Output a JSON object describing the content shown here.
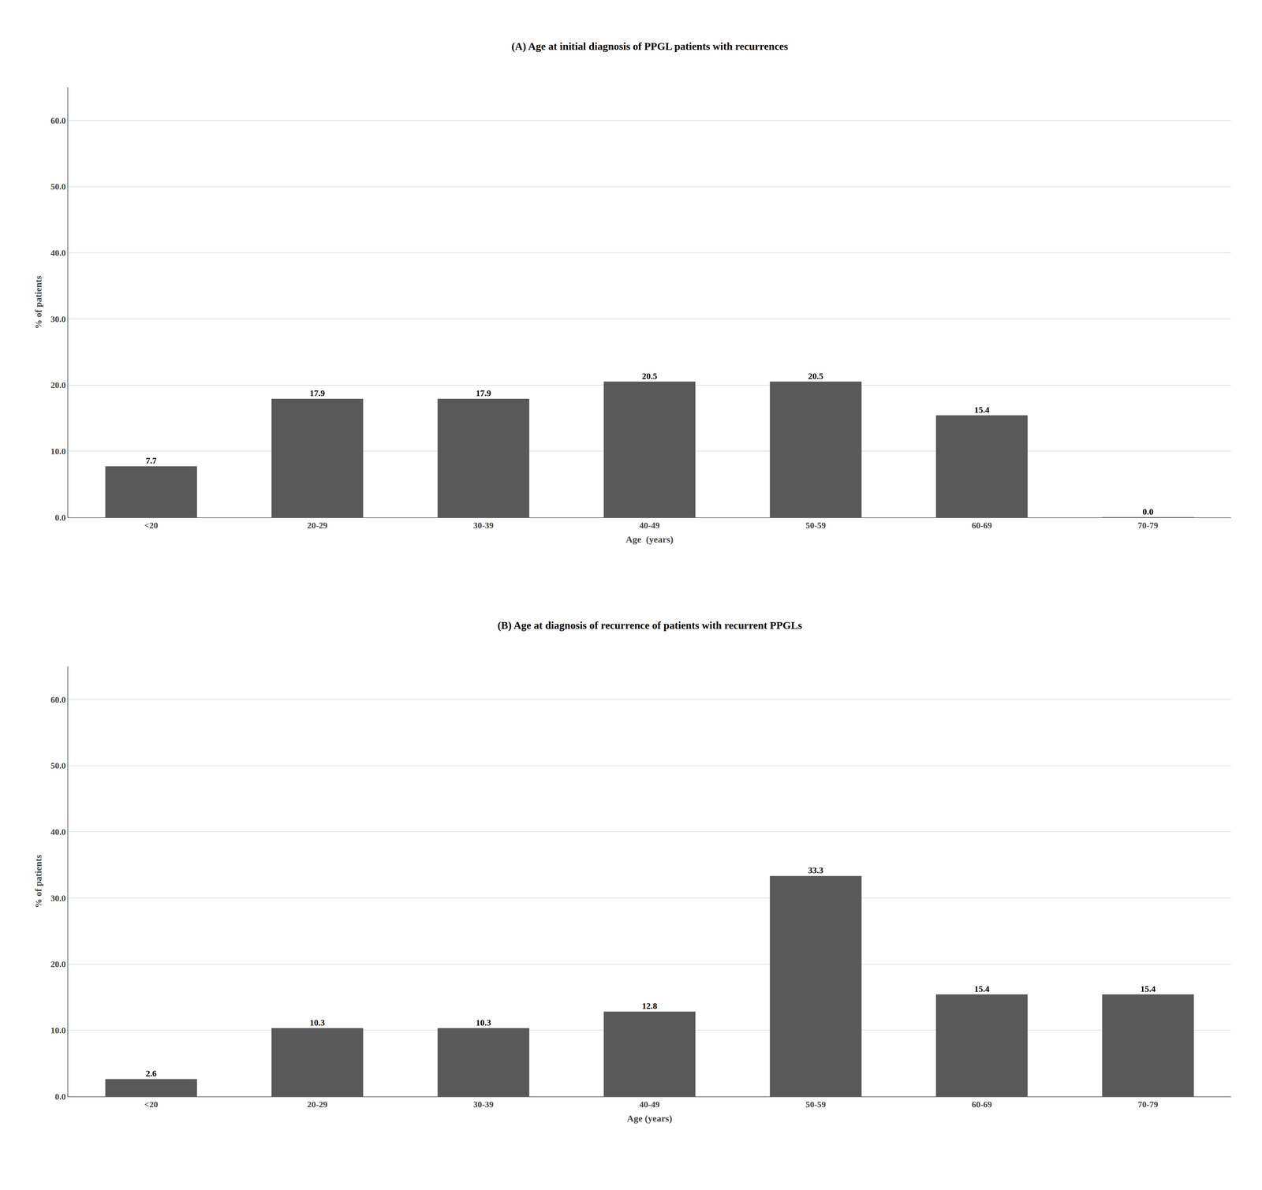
{
  "chart_data": [
    {
      "type": "bar",
      "title": "(A) Age at initial diagnosis of PPGL patients with recurrences",
      "categories": [
        "<20",
        "20-29",
        "30-39",
        "40-49",
        "50-59",
        "60-69",
        "70-79"
      ],
      "values": [
        7.7,
        17.9,
        17.9,
        20.5,
        20.5,
        15.4,
        0.0
      ],
      "value_labels": [
        "7.7",
        "17.9",
        "17.9",
        "20.5",
        "20.5",
        "15.4",
        "0.0"
      ],
      "xlabel": "Age  (years)",
      "ylabel": "% of patients",
      "ylim": [
        0,
        65
      ],
      "yticks": [
        {
          "value": 0,
          "label": "0.0"
        },
        {
          "value": 10,
          "label": "10.0"
        },
        {
          "value": 20,
          "label": "20.0"
        },
        {
          "value": 30,
          "label": "30.0"
        },
        {
          "value": 40,
          "label": "40.0"
        },
        {
          "value": 50,
          "label": "50.0"
        },
        {
          "value": 60,
          "label": "60.0"
        }
      ],
      "color": "#595959",
      "grid": true,
      "data_labels": true
    },
    {
      "type": "bar",
      "title": "(B) Age at diagnosis of recurrence of patients with recurrent PPGLs",
      "categories": [
        "<20",
        "20-29",
        "30-39",
        "40-49",
        "50-59",
        "60-69",
        "70-79"
      ],
      "values": [
        2.6,
        10.3,
        10.3,
        12.8,
        33.3,
        15.4,
        15.4
      ],
      "value_labels": [
        "2.6",
        "10.3",
        "10.3",
        "12.8",
        "33.3",
        "15.4",
        "15.4"
      ],
      "xlabel": "Age (years)",
      "ylabel": "% of patients",
      "ylim": [
        0,
        65
      ],
      "yticks": [
        {
          "value": 0,
          "label": "0.0"
        },
        {
          "value": 10,
          "label": "10.0"
        },
        {
          "value": 20,
          "label": "20.0"
        },
        {
          "value": 30,
          "label": "30.0"
        },
        {
          "value": 40,
          "label": "40.0"
        },
        {
          "value": 50,
          "label": "50.0"
        },
        {
          "value": 60,
          "label": "60.0"
        }
      ],
      "color": "#595959",
      "grid": true,
      "data_labels": true
    }
  ]
}
